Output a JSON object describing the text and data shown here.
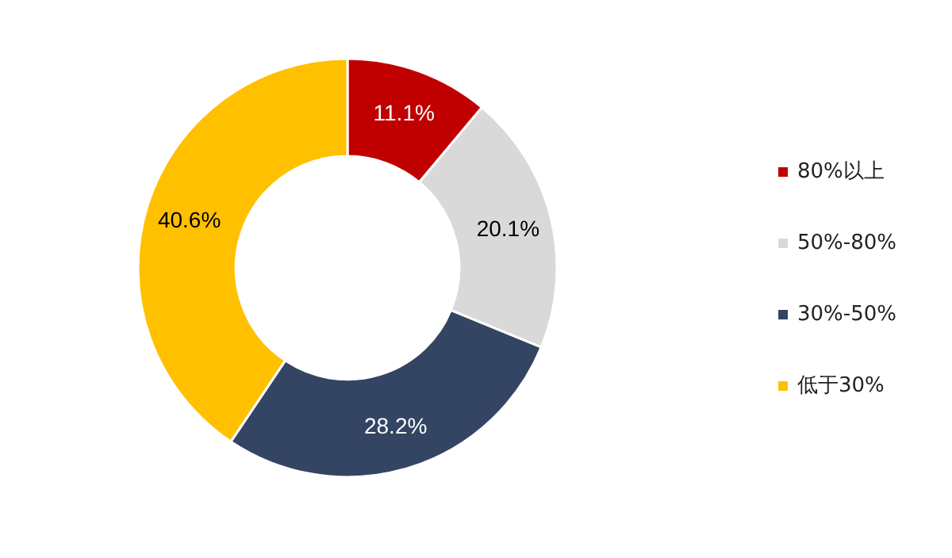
{
  "chart_data": {
    "type": "donut",
    "categories": [
      "80%以上",
      "50%-80%",
      "30%-50%",
      "低于30%"
    ],
    "values": [
      11.1,
      20.1,
      28.2,
      40.6
    ],
    "colors": [
      "#c00000",
      "#d9d9d9",
      "#344563",
      "#ffc000"
    ],
    "value_labels": [
      "11.1%",
      "20.1%",
      "28.2%",
      "40.6%"
    ],
    "legend": "right"
  }
}
